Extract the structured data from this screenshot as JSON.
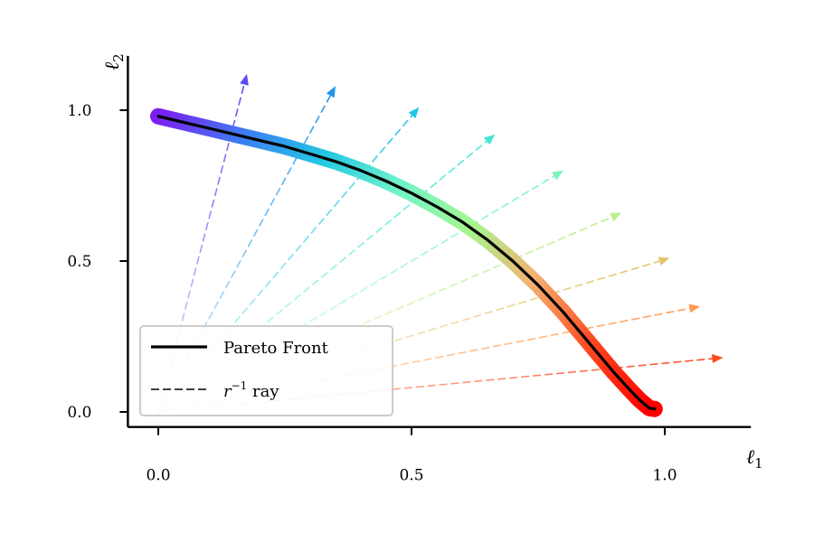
{
  "chart_data": {
    "type": "line",
    "xlabel": "ℓ1",
    "ylabel": "ℓ2",
    "xlim": [
      -0.06,
      1.17
    ],
    "ylim": [
      -0.05,
      1.18
    ],
    "x_ticks": [
      0.0,
      0.5,
      1.0
    ],
    "y_ticks": [
      0.0,
      0.5,
      1.0
    ],
    "x_tick_labels": [
      "0.0",
      "0.5",
      "1.0"
    ],
    "y_tick_labels": [
      "0.0",
      "0.5",
      "1.0"
    ],
    "grid": false,
    "legend_position": "bottom-left",
    "legend": [
      {
        "label": "Pareto Front",
        "style": "solid"
      },
      {
        "label_main": "r",
        "label_sup": "−1",
        "label_rest": " ray",
        "style": "dashed"
      }
    ],
    "pareto_front": {
      "x": [
        0.0,
        0.05,
        0.1,
        0.15,
        0.2,
        0.25,
        0.3,
        0.35,
        0.4,
        0.45,
        0.5,
        0.55,
        0.6,
        0.65,
        0.7,
        0.75,
        0.8,
        0.85,
        0.9,
        0.93,
        0.95,
        0.97,
        0.98
      ],
      "y": [
        0.98,
        0.96,
        0.94,
        0.92,
        0.9,
        0.88,
        0.855,
        0.83,
        0.8,
        0.765,
        0.725,
        0.68,
        0.63,
        0.57,
        0.5,
        0.42,
        0.33,
        0.23,
        0.13,
        0.075,
        0.04,
        0.012,
        0.01
      ],
      "color": "#000000",
      "gradient_colors": [
        "#7a1ff0",
        "#3d7bf2",
        "#22c7e4",
        "#72f4c8",
        "#a6f58f",
        "#f4b070",
        "#ff4a20",
        "#ff0000"
      ]
    },
    "rays": [
      {
        "end": [
          0.175,
          1.12
        ],
        "color": "#5a4cf0"
      },
      {
        "end": [
          0.35,
          1.08
        ],
        "color": "#1f96ec"
      },
      {
        "end": [
          0.515,
          1.01
        ],
        "color": "#22c7e4"
      },
      {
        "end": [
          0.665,
          0.92
        ],
        "color": "#42e8d4"
      },
      {
        "end": [
          0.8,
          0.8
        ],
        "color": "#7af5be"
      },
      {
        "end": [
          0.915,
          0.66
        ],
        "color": "#b8f08e"
      },
      {
        "end": [
          1.01,
          0.51
        ],
        "color": "#e6c46e"
      },
      {
        "end": [
          1.07,
          0.35
        ],
        "color": "#ff9a50"
      },
      {
        "end": [
          1.115,
          0.18
        ],
        "color": "#ff4a22"
      }
    ]
  }
}
